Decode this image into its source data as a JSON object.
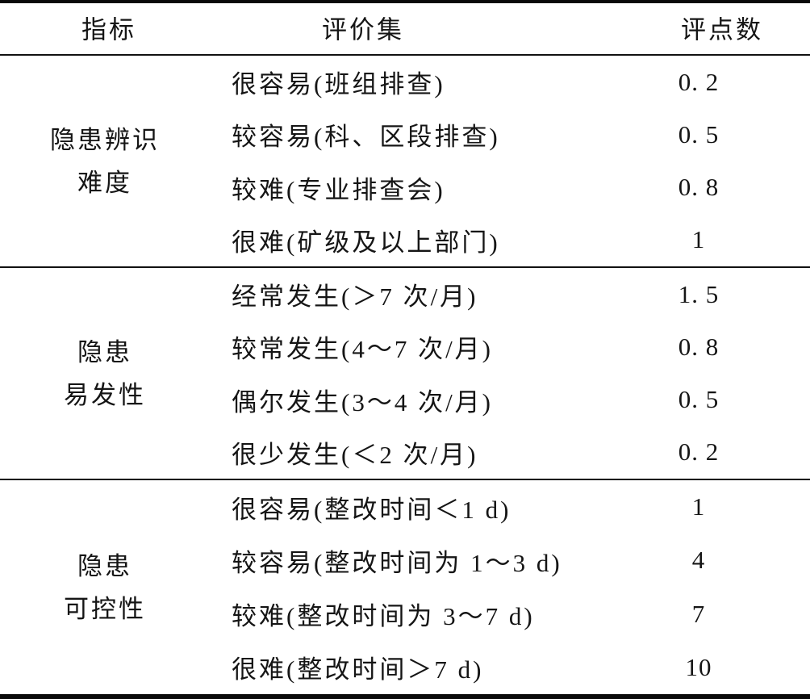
{
  "table": {
    "columns": {
      "indicator": "指标",
      "evaluation_set": "评价集",
      "score": "评点数"
    },
    "groups": [
      {
        "indicator_lines": [
          "隐患辨识",
          "难度"
        ],
        "rows": [
          {
            "label": "很容易(班组排查)",
            "value": "0. 2"
          },
          {
            "label": "较容易(科、区段排查)",
            "value": "0. 5"
          },
          {
            "label": "较难(专业排查会)",
            "value": "0. 8"
          },
          {
            "label": "很难(矿级及以上部门)",
            "value": "1"
          }
        ]
      },
      {
        "indicator_lines": [
          "隐患",
          "易发性"
        ],
        "rows": [
          {
            "label": "经常发生(＞7 次/月)",
            "value": "1. 5"
          },
          {
            "label": "较常发生(4～7 次/月)",
            "value": "0. 8"
          },
          {
            "label": "偶尔发生(3～4 次/月)",
            "value": "0. 5"
          },
          {
            "label": "很少发生(＜2 次/月)",
            "value": "0. 2"
          }
        ]
      },
      {
        "indicator_lines": [
          "隐患",
          "可控性"
        ],
        "rows": [
          {
            "label": "很容易(整改时间＜1 d)",
            "value": "1"
          },
          {
            "label": "较容易(整改时间为 1～3 d)",
            "value": "4"
          },
          {
            "label": "较难(整改时间为 3～7 d)",
            "value": "7"
          },
          {
            "label": "很难(整改时间＞7 d)",
            "value": "10"
          }
        ]
      }
    ]
  },
  "chart_data": {
    "type": "table",
    "title": "",
    "columns": [
      "指标",
      "评价集",
      "评点数"
    ],
    "rows": [
      [
        "隐患辨识难度",
        "很容易(班组排查)",
        0.2
      ],
      [
        "隐患辨识难度",
        "较容易(科、区段排查)",
        0.5
      ],
      [
        "隐患辨识难度",
        "较难(专业排查会)",
        0.8
      ],
      [
        "隐患辨识难度",
        "很难(矿级及以上部门)",
        1
      ],
      [
        "隐患易发性",
        "经常发生(＞7 次/月)",
        1.5
      ],
      [
        "隐患易发性",
        "较常发生(4～7 次/月)",
        0.8
      ],
      [
        "隐患易发性",
        "偶尔发生(3～4 次/月)",
        0.5
      ],
      [
        "隐患易发性",
        "很少发生(＜2 次/月)",
        0.2
      ],
      [
        "隐患可控性",
        "很容易(整改时间＜1 d)",
        1
      ],
      [
        "隐患可控性",
        "较容易(整改时间为 1～3 d)",
        4
      ],
      [
        "隐患可控性",
        "较难(整改时间为 3～7 d)",
        7
      ],
      [
        "隐患可控性",
        "很难(整改时间＞7 d)",
        10
      ]
    ]
  }
}
